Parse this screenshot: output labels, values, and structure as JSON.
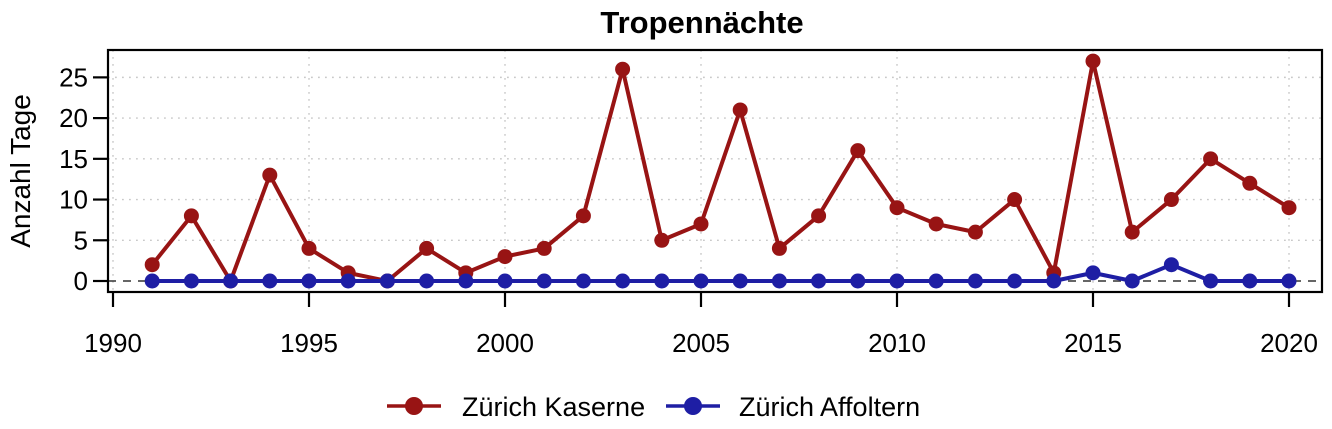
{
  "chart_data": {
    "type": "line",
    "title": "Tropennächte",
    "xlabel": "",
    "ylabel": "Anzahl Tage",
    "years": [
      1991,
      1992,
      1993,
      1994,
      1995,
      1996,
      1997,
      1998,
      1999,
      2000,
      2001,
      2002,
      2003,
      2004,
      2005,
      2006,
      2007,
      2008,
      2009,
      2010,
      2011,
      2012,
      2013,
      2014,
      2015,
      2016,
      2017,
      2018,
      2019,
      2020
    ],
    "series": [
      {
        "name": "Zürich Kaserne",
        "color": "#981414",
        "values": [
          2,
          8,
          0,
          13,
          4,
          1,
          0,
          4,
          1,
          3,
          4,
          8,
          26,
          5,
          7,
          21,
          4,
          8,
          16,
          9,
          7,
          6,
          10,
          1,
          27,
          6,
          10,
          15,
          12,
          9
        ]
      },
      {
        "name": "Zürich Affoltern",
        "color": "#1E1EA4",
        "values": [
          0,
          0,
          0,
          0,
          0,
          0,
          0,
          0,
          0,
          0,
          0,
          0,
          0,
          0,
          0,
          0,
          0,
          0,
          0,
          0,
          0,
          0,
          0,
          0,
          1,
          0,
          2,
          0,
          0,
          0
        ]
      }
    ],
    "xticks": [
      1990,
      1995,
      2000,
      2005,
      2010,
      2015,
      2020
    ],
    "yticks": [
      0,
      5,
      10,
      15,
      20,
      25
    ],
    "xlim": [
      1989.85,
      2020.85
    ],
    "ylim": [
      -1.4,
      28.4
    ],
    "grid": "dotted",
    "grid_color": "#C9C9C9",
    "zero_line_style": "dashed",
    "zero_line_color": "#333333",
    "frame_color": "#000000",
    "legend_position": "bottom"
  }
}
